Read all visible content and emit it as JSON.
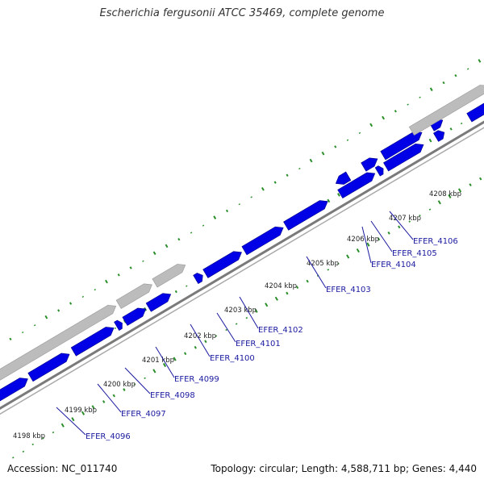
{
  "title": "Escherichia fergusonii ATCC 35469, complete genome",
  "footer": {
    "accession": "Accession: NC_011740",
    "summary": "Topology: circular; Length: 4,588,711 bp; Genes: 4,440"
  },
  "colors": {
    "backbone": "#808080",
    "gene": "#0000e6",
    "gene_edge": "#00008a",
    "pseudogene": "#bcbcbc",
    "skew": "#2a8f2a",
    "label": "#1a1aa0"
  },
  "ticks": [
    "4198 kbp",
    "4199 kbp",
    "4200 kbp",
    "4201 kbp",
    "4202 kbp",
    "4203 kbp",
    "4204 kbp",
    "4205 kbp",
    "4206 kbp",
    "4207 kbp",
    "4208 kbp"
  ],
  "gene_labels": [
    "EFER_4096",
    "EFER_4097",
    "EFER_4098",
    "EFER_4099",
    "EFER_4100",
    "EFER_4101",
    "EFER_4102",
    "EFER_4103",
    "EFER_4104",
    "EFER_4105",
    "EFER_4106"
  ]
}
